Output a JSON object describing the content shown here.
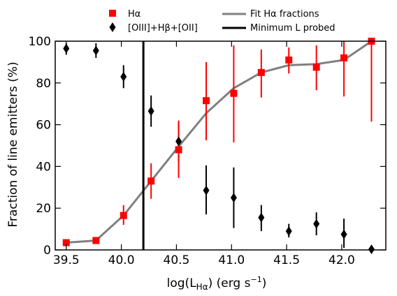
{
  "chart_data": {
    "type": "scatter",
    "xlabel": "log(L_{Hα}) (erg s^{−1})",
    "ylabel": "Fraction of line emitters (%)",
    "xlim": [
      39.4,
      42.4
    ],
    "ylim": [
      0,
      100
    ],
    "xticks": [
      "39.5",
      "40.0",
      "40.5",
      "41.0",
      "41.5",
      "42.0"
    ],
    "xtick_values": [
      39.5,
      40.0,
      40.5,
      41.0,
      41.5,
      42.0
    ],
    "yticks": [
      "0",
      "20",
      "40",
      "60",
      "80",
      "100"
    ],
    "ytick_values": [
      0,
      20,
      40,
      60,
      80,
      100
    ],
    "grid": false,
    "legend_position": "top",
    "series": [
      {
        "name": "Hα",
        "kind": "points",
        "marker": "square",
        "color": "#ff0000",
        "points": [
          {
            "x": 39.5,
            "y": 3.5,
            "lo": 2.5,
            "hi": 4.5
          },
          {
            "x": 39.77,
            "y": 4.5,
            "lo": 3.0,
            "hi": 6.0
          },
          {
            "x": 40.02,
            "y": 16.5,
            "lo": 12.0,
            "hi": 21.5
          },
          {
            "x": 40.27,
            "y": 33.0,
            "lo": 24.5,
            "hi": 41.5
          },
          {
            "x": 40.52,
            "y": 48.0,
            "lo": 34.5,
            "hi": 62.0
          },
          {
            "x": 40.77,
            "y": 71.5,
            "lo": 52.5,
            "hi": 90.0
          },
          {
            "x": 41.02,
            "y": 75.0,
            "lo": 51.5,
            "hi": 98.0
          },
          {
            "x": 41.27,
            "y": 85.0,
            "lo": 73.0,
            "hi": 96.0
          },
          {
            "x": 41.52,
            "y": 91.0,
            "lo": 84.5,
            "hi": 97.0
          },
          {
            "x": 41.77,
            "y": 87.5,
            "lo": 76.5,
            "hi": 98.0
          },
          {
            "x": 42.02,
            "y": 92.0,
            "lo": 73.5,
            "hi": 100.0
          },
          {
            "x": 42.27,
            "y": 100.0,
            "lo": 61.5,
            "hi": 100.0
          }
        ]
      },
      {
        "name": "[OIII]+Hβ+[OII]",
        "kind": "points",
        "marker": "diamond",
        "color": "#000000",
        "points": [
          {
            "x": 39.5,
            "y": 96.5,
            "lo": 93.5,
            "hi": 99.0
          },
          {
            "x": 39.77,
            "y": 95.5,
            "lo": 92.0,
            "hi": 99.0
          },
          {
            "x": 40.02,
            "y": 83.0,
            "lo": 77.5,
            "hi": 88.5
          },
          {
            "x": 40.27,
            "y": 66.5,
            "lo": 59.0,
            "hi": 74.0
          },
          {
            "x": 40.52,
            "y": 52.0,
            "lo": 42.5,
            "hi": 61.0
          },
          {
            "x": 40.77,
            "y": 28.5,
            "lo": 17.0,
            "hi": 40.5
          },
          {
            "x": 41.02,
            "y": 25.0,
            "lo": 10.5,
            "hi": 39.5
          },
          {
            "x": 41.27,
            "y": 15.5,
            "lo": 9.0,
            "hi": 21.5
          },
          {
            "x": 41.52,
            "y": 9.0,
            "lo": 6.0,
            "hi": 12.5
          },
          {
            "x": 41.77,
            "y": 12.5,
            "lo": 7.0,
            "hi": 18.0
          },
          {
            "x": 42.02,
            "y": 7.5,
            "lo": 1.0,
            "hi": 15.0
          },
          {
            "x": 42.27,
            "y": 0.3,
            "lo": 0.0,
            "hi": 1.0
          }
        ]
      },
      {
        "name": "Fit Hα fractions",
        "kind": "line",
        "color": "#808080",
        "points": [
          {
            "x": 39.5,
            "y": 3.5
          },
          {
            "x": 39.77,
            "y": 4.5
          },
          {
            "x": 40.02,
            "y": 16.5
          },
          {
            "x": 40.27,
            "y": 33.0
          },
          {
            "x": 40.52,
            "y": 49.5
          },
          {
            "x": 40.77,
            "y": 65.5
          },
          {
            "x": 41.02,
            "y": 77.5
          },
          {
            "x": 41.27,
            "y": 85.0
          },
          {
            "x": 41.52,
            "y": 88.5
          },
          {
            "x": 41.77,
            "y": 89.0
          },
          {
            "x": 42.02,
            "y": 91.0
          },
          {
            "x": 42.27,
            "y": 100.0
          }
        ]
      },
      {
        "name": "Minimum L probed",
        "kind": "vline",
        "color": "#000000",
        "x": 40.2
      }
    ]
  }
}
